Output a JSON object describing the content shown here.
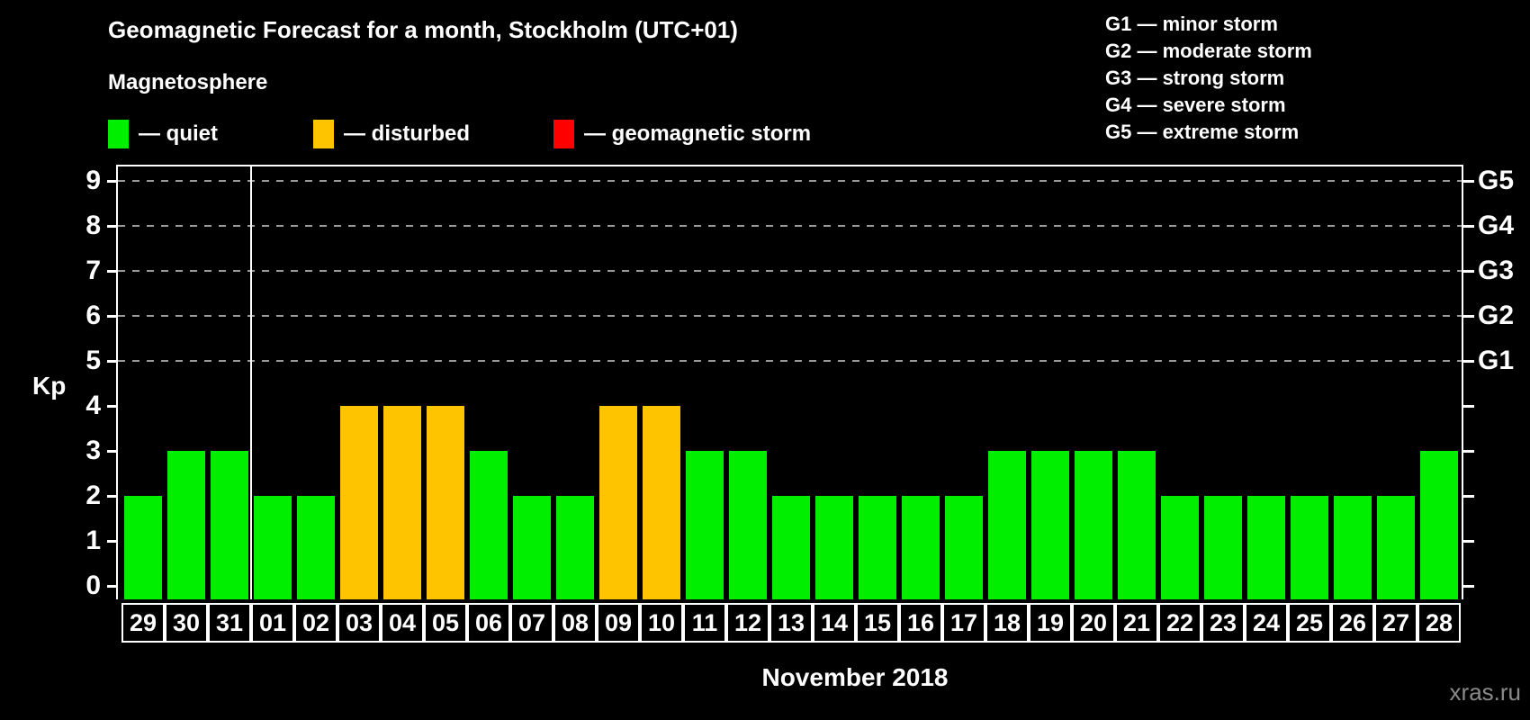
{
  "title": "Geomagnetic Forecast for a month, Stockholm (UTC+01)",
  "subtitle": "Magnetosphere",
  "legend": {
    "items": [
      {
        "status": "quiet",
        "label": "— quiet",
        "color": "#00EE00"
      },
      {
        "status": "disturbed",
        "label": "— disturbed",
        "color": "#FFC400"
      },
      {
        "status": "storm",
        "label": "— geomagnetic storm",
        "color": "#FF0000"
      }
    ]
  },
  "storm_scale_legend": [
    "G1 — minor storm",
    "G2 — moderate storm",
    "G3 — strong storm",
    "G4 — severe storm",
    "G5 — extreme storm"
  ],
  "watermark": "xras.ru",
  "chart_data": {
    "type": "bar",
    "title": "Geomagnetic Forecast for a month, Stockholm (UTC+01)",
    "xlabel": "November 2018",
    "ylabel": "Kp",
    "ylim": [
      0,
      9
    ],
    "yticks": [
      0,
      1,
      2,
      3,
      4,
      5,
      6,
      7,
      8,
      9
    ],
    "gridlines_at_kp": [
      5,
      6,
      7,
      8,
      9
    ],
    "grid": "dashed horizontal lines only at Kp 5-9",
    "legend_position": "top",
    "right_axis": [
      {
        "kp": 5,
        "label": "G1"
      },
      {
        "kp": 6,
        "label": "G2"
      },
      {
        "kp": 7,
        "label": "G3"
      },
      {
        "kp": 8,
        "label": "G4"
      },
      {
        "kp": 9,
        "label": "G5"
      }
    ],
    "month_separator_after_day": "31",
    "categories": [
      "29",
      "30",
      "31",
      "01",
      "02",
      "03",
      "04",
      "05",
      "06",
      "07",
      "08",
      "09",
      "10",
      "11",
      "12",
      "13",
      "14",
      "15",
      "16",
      "17",
      "18",
      "19",
      "20",
      "21",
      "22",
      "23",
      "24",
      "25",
      "26",
      "27",
      "28"
    ],
    "values": [
      2,
      3,
      3,
      2,
      2,
      4,
      4,
      4,
      3,
      2,
      2,
      4,
      4,
      3,
      3,
      2,
      2,
      2,
      2,
      2,
      3,
      3,
      3,
      3,
      2,
      2,
      2,
      2,
      2,
      2,
      3
    ],
    "statuses": [
      "quiet",
      "quiet",
      "quiet",
      "quiet",
      "quiet",
      "disturbed",
      "disturbed",
      "disturbed",
      "quiet",
      "quiet",
      "quiet",
      "disturbed",
      "disturbed",
      "quiet",
      "quiet",
      "quiet",
      "quiet",
      "quiet",
      "quiet",
      "quiet",
      "quiet",
      "quiet",
      "quiet",
      "quiet",
      "quiet",
      "quiet",
      "quiet",
      "quiet",
      "quiet",
      "quiet",
      "quiet"
    ],
    "colors": {
      "quiet": "#00EE00",
      "disturbed": "#FFC400",
      "storm": "#FF0000"
    },
    "background_color": "#000000",
    "axis_color": "#FFFFFF",
    "gridline_color": "#9A9A9A"
  }
}
